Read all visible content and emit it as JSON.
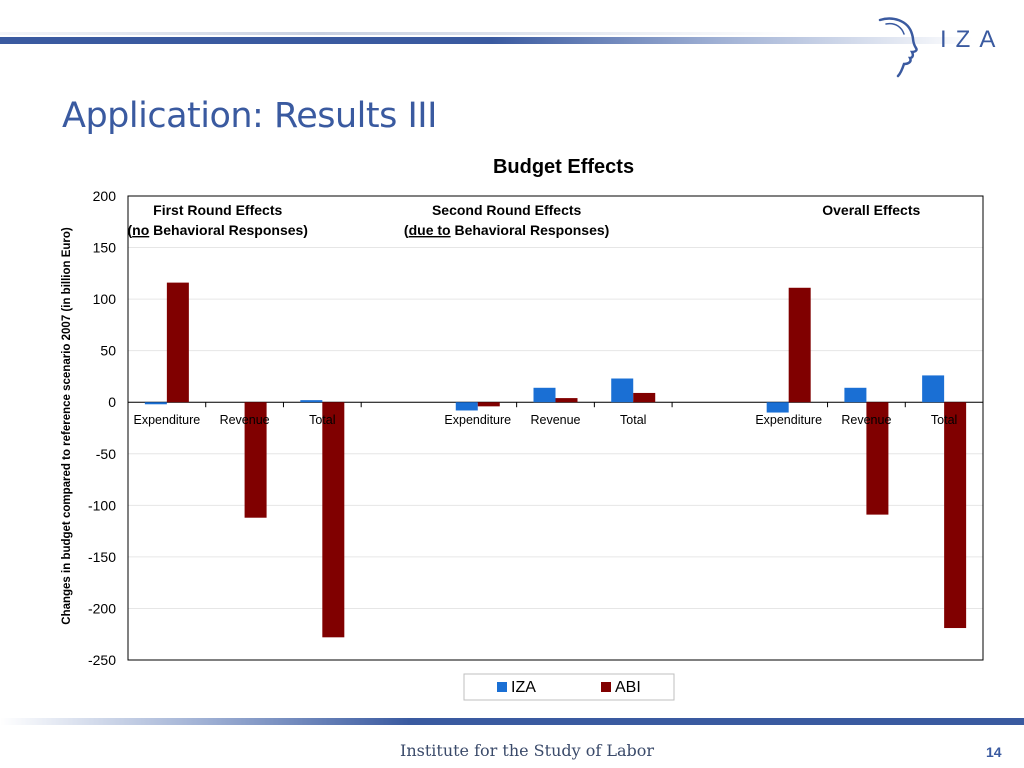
{
  "slide": {
    "title": "Application: Results III",
    "logo_text": "IZA",
    "footer": "Institute for the Study of Labor",
    "page_number": "14",
    "brand_color": "#3a5aa0"
  },
  "chart_data": {
    "type": "bar",
    "title": "Budget Effects",
    "ylabel": "Changes in budget compared to reference scenario 2007 (in billion Euro)",
    "ylim": [
      -250,
      200
    ],
    "yticks": [
      200,
      150,
      100,
      50,
      0,
      -50,
      -100,
      -150,
      -200,
      -250
    ],
    "grid": true,
    "legend_position": "bottom",
    "groups": [
      {
        "title_line1": "First Round Effects",
        "title_line2_underlined": "no",
        "title_line2_rest": " Behavioral Responses)"
      },
      {
        "title_line1": "Second Round Effects",
        "title_line2_underlined": "due to",
        "title_line2_rest": " Behavioral Responses)"
      },
      {
        "title_line1": "Overall Effects",
        "title_line2_underlined": "",
        "title_line2_rest": ""
      }
    ],
    "categories": [
      "Expenditure",
      "Revenue",
      "Total",
      "Expenditure",
      "Revenue",
      "Total",
      "Expenditure",
      "Revenue",
      "Total"
    ],
    "series": [
      {
        "name": "IZA",
        "color": "#1a6fd4",
        "values": [
          -2,
          0,
          2,
          -8,
          14,
          23,
          -10,
          14,
          26
        ]
      },
      {
        "name": "ABI",
        "color": "#800000",
        "values": [
          116,
          -112,
          -228,
          -4,
          4,
          9,
          111,
          -109,
          -219
        ]
      }
    ]
  }
}
